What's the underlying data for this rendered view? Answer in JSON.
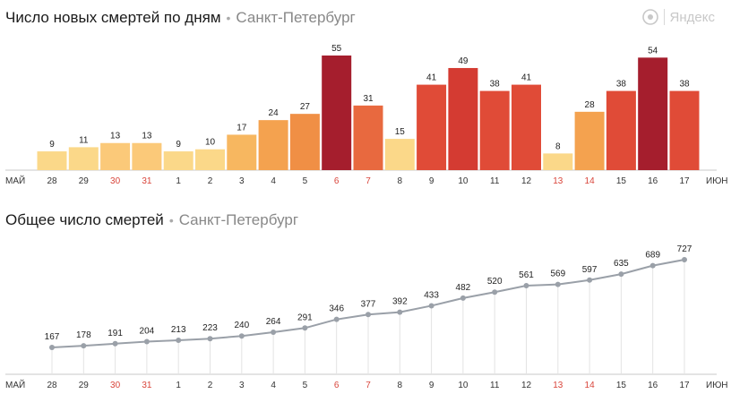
{
  "brand": {
    "name": "Яндекс",
    "icon": "yandex-logo-icon"
  },
  "chart_data": [
    {
      "type": "bar",
      "title": "Число новых смертей по дням",
      "subtitle": "Санкт-Петербург",
      "x_start_label": "МАЙ",
      "x_end_label": "ИЮН",
      "categories": [
        "28",
        "29",
        "30",
        "31",
        "1",
        "2",
        "3",
        "4",
        "5",
        "6",
        "7",
        "8",
        "9",
        "10",
        "11",
        "12",
        "13",
        "14",
        "15",
        "16",
        "17"
      ],
      "weekend_categories": [
        "30",
        "31",
        "6",
        "7",
        "13",
        "14"
      ],
      "values": [
        9,
        11,
        13,
        13,
        9,
        10,
        17,
        24,
        27,
        55,
        31,
        15,
        41,
        49,
        38,
        41,
        8,
        28,
        38,
        54,
        38
      ],
      "ylim": [
        0,
        55
      ],
      "colors": [
        "#fbd889",
        "#fbd889",
        "#fbc979",
        "#fbc979",
        "#fbd889",
        "#fbd889",
        "#f7b760",
        "#f4a24f",
        "#f08f45",
        "#a51e2d",
        "#e8693f",
        "#fbd889",
        "#e04b37",
        "#d43b32",
        "#e04b37",
        "#e04b37",
        "#fbd889",
        "#f4a24f",
        "#e04b37",
        "#a51e2d",
        "#e04b37"
      ]
    },
    {
      "type": "line",
      "title": "Общее число смертей",
      "subtitle": "Санкт-Петербург",
      "x_start_label": "МАЙ",
      "x_end_label": "ИЮН",
      "categories": [
        "28",
        "29",
        "30",
        "31",
        "1",
        "2",
        "3",
        "4",
        "5",
        "6",
        "7",
        "8",
        "9",
        "10",
        "11",
        "12",
        "13",
        "14",
        "15",
        "16",
        "17"
      ],
      "weekend_categories": [
        "30",
        "31",
        "6",
        "7",
        "13",
        "14"
      ],
      "values": [
        167,
        178,
        191,
        204,
        213,
        223,
        240,
        264,
        291,
        346,
        377,
        392,
        433,
        482,
        520,
        561,
        569,
        597,
        635,
        689,
        727
      ],
      "ylim": [
        0,
        727
      ],
      "line_color": "#9aa0a8"
    }
  ]
}
